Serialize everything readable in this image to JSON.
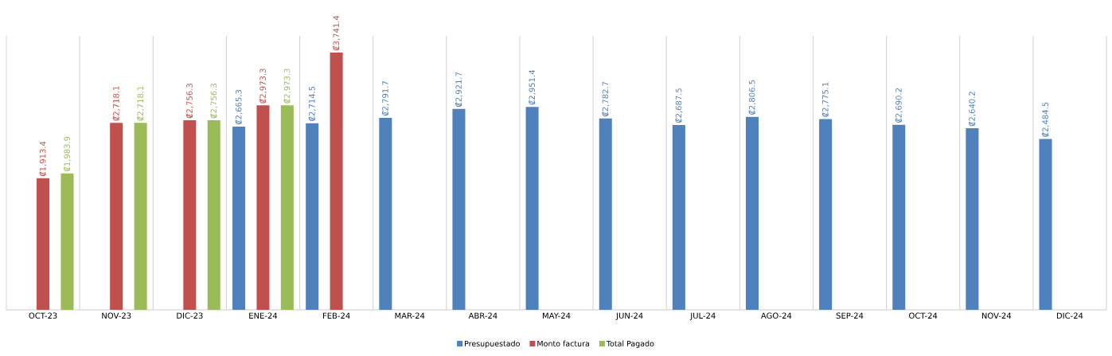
{
  "chart_data": {
    "type": "bar",
    "categories": [
      "OCT-23",
      "NOV-23",
      "DIC-23",
      "ENE-24",
      "FEB-24",
      "MAR-24",
      "ABR-24",
      "MAY-24",
      "JUN-24",
      "JUL-24",
      "AGO-24",
      "SEP-24",
      "OCT-24",
      "NOV-24",
      "DIC-24"
    ],
    "series": [
      {
        "name": "Presupuestado",
        "color": "#4f81bd",
        "values": [
          null,
          null,
          null,
          2665.3,
          2714.5,
          2791.7,
          2921.7,
          2951.4,
          2782.7,
          2687.5,
          2806.5,
          2775.1,
          2690.2,
          2640.2,
          2484.5
        ],
        "value_labels": [
          null,
          null,
          null,
          "₡2,665.3",
          "₡2,714.5",
          "₡2,791.7",
          "₡2,921.7",
          "₡2,951.4",
          "₡2,782.7",
          "₡2,687.5",
          "₡2,806.5",
          "₡2,775.1",
          "₡2,690.2",
          "₡2,640.2",
          "₡2,484.5"
        ]
      },
      {
        "name": "Monto factura",
        "color": "#c0504d",
        "values": [
          1913.4,
          2718.1,
          2756.3,
          2973.3,
          3741.4,
          null,
          null,
          null,
          null,
          null,
          null,
          null,
          null,
          null,
          null
        ],
        "value_labels": [
          "₡1,913.4",
          "₡2,718.1",
          "₡2,756.3",
          "₡2,973.3",
          "₡3,741.4",
          null,
          null,
          null,
          null,
          null,
          null,
          null,
          null,
          null,
          null
        ]
      },
      {
        "name": "Total Pagado",
        "color": "#9bbb59",
        "values": [
          1983.9,
          2718.1,
          2756.3,
          2973.3,
          null,
          null,
          null,
          null,
          null,
          null,
          null,
          null,
          null,
          null,
          null
        ],
        "value_labels": [
          "₡1,983.9",
          "₡2,718.1",
          "₡2,756.3",
          "₡2,973.3",
          null,
          null,
          null,
          null,
          null,
          null,
          null,
          null,
          null,
          null,
          null
        ]
      }
    ],
    "grid": "x",
    "legend": "bottom"
  }
}
